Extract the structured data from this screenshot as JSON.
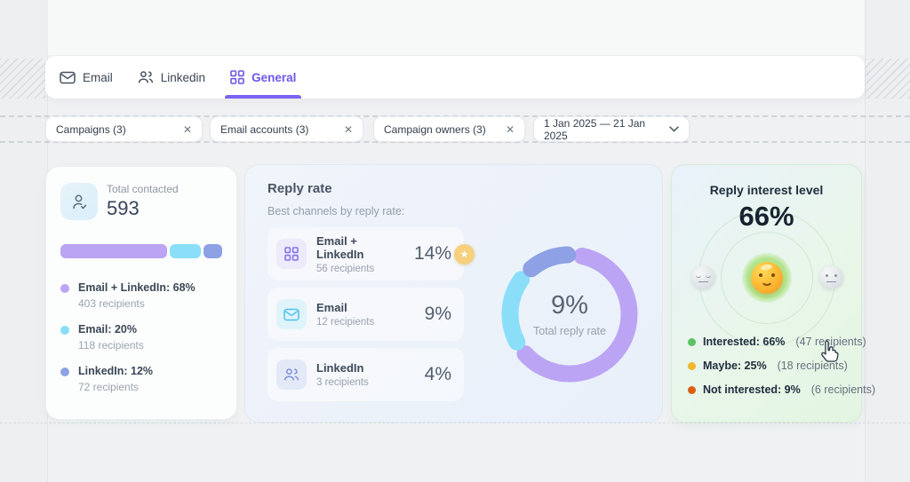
{
  "tabs": [
    {
      "label": "Email"
    },
    {
      "label": "Linkedin"
    },
    {
      "label": "General",
      "active": true
    }
  ],
  "filters": {
    "chips": [
      {
        "label": "Campaigns (3)"
      },
      {
        "label": "Email accounts (3)"
      },
      {
        "label": "Campaign owners (3)"
      }
    ],
    "close_glyph": "✕",
    "date_range": "1 Jan 2025 — 21 Jan 2025"
  },
  "cards": {
    "total_contacted": {
      "label": "Total contacted",
      "value": "593",
      "segments": [
        {
          "name": "Email + LinkedIn",
          "percent": 68,
          "label": "Email + LinkedIn: 68%",
          "sub": "403 recipients",
          "color": "#bca4f4"
        },
        {
          "name": "Email",
          "percent": 20,
          "label": "Email: 20%",
          "sub": "118 recipients",
          "color": "#8adef8"
        },
        {
          "name": "LinkedIn",
          "percent": 12,
          "label": "LinkedIn: 12%",
          "sub": "72 recipients",
          "color": "#8da1e4"
        }
      ]
    },
    "reply_rate": {
      "title": "Reply rate",
      "subtitle": "Best channels by reply rate:",
      "rows": [
        {
          "name": "Email + LinkedIn",
          "recipients": "56 recipients",
          "rate": "14%",
          "best": true
        },
        {
          "name": "Email",
          "recipients": "12 recipients",
          "rate": "9%",
          "best": false
        },
        {
          "name": "LinkedIn",
          "recipients": "3 recipients",
          "rate": "4%",
          "best": false
        }
      ],
      "star_glyph": "★",
      "donut": {
        "value": "9%",
        "label": "Total reply rate"
      }
    },
    "reply_interest": {
      "title": "Reply interest level",
      "value": "66%",
      "legend": [
        {
          "label": "Interested: 66%",
          "detail": "(47 recipients)",
          "color": "#5ac463"
        },
        {
          "label": "Maybe: 25%",
          "detail": "(18 recipients)",
          "color": "#f2b72c"
        },
        {
          "label": "Not interested: 9%",
          "detail": "(6 recipients)",
          "color": "#dc5f14"
        }
      ]
    }
  },
  "chart_data": [
    {
      "type": "bar",
      "title": "Total contacted channel split",
      "categories": [
        "Email + LinkedIn",
        "Email",
        "LinkedIn"
      ],
      "values": [
        68,
        20,
        12
      ],
      "recipients": [
        403,
        118,
        72
      ],
      "total": 593,
      "unit": "%"
    },
    {
      "type": "pie",
      "title": "Total reply rate donut (channel share)",
      "categories": [
        "Email + LinkedIn",
        "Email",
        "LinkedIn"
      ],
      "values": [
        68,
        20,
        12
      ],
      "center_value": "9%",
      "center_label": "Total reply rate",
      "colors": [
        "#bca4f4",
        "#8adef8",
        "#8da1e4"
      ]
    },
    {
      "type": "pie",
      "title": "Reply interest level",
      "categories": [
        "Interested",
        "Maybe",
        "Not interested"
      ],
      "values": [
        66,
        25,
        9
      ],
      "recipients": [
        47,
        18,
        6
      ],
      "headline": "66%"
    }
  ]
}
